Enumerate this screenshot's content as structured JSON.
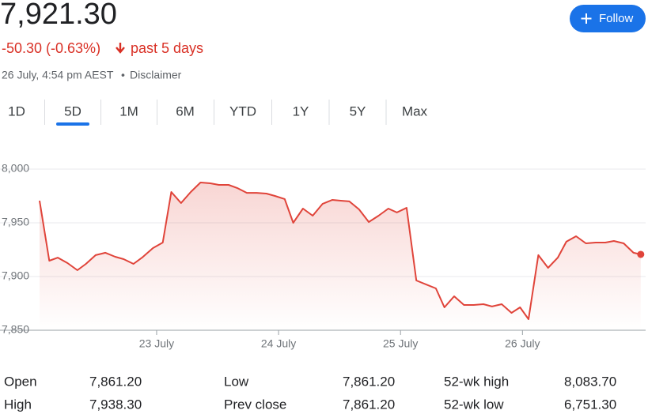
{
  "header": {
    "price": "7,921.30",
    "change": "-50.30 (-0.63%)",
    "period": "past 5 days",
    "timestamp": "26 July, 4:54 pm AEST",
    "disclaimer": "Disclaimer",
    "follow": "Follow"
  },
  "tabs": [
    "1D",
    "5D",
    "1M",
    "6M",
    "YTD",
    "1Y",
    "5Y",
    "Max"
  ],
  "active_tab": 1,
  "chart_data": {
    "type": "line",
    "series": [
      {
        "color": "#e0443a",
        "x": [
          22.04,
          22.12,
          22.19,
          22.27,
          22.35,
          22.42,
          22.5,
          22.58,
          22.66,
          22.73,
          22.81,
          22.88,
          22.97,
          23.05,
          23.12,
          23.2,
          23.28,
          23.36,
          23.44,
          23.51,
          23.59,
          23.66,
          23.74,
          23.82,
          23.9,
          23.97,
          24.05,
          24.12,
          24.2,
          24.28,
          24.36,
          24.44,
          24.51,
          24.58,
          24.66,
          24.74,
          24.82,
          24.9,
          24.97,
          25.05,
          25.13,
          25.21,
          25.29,
          25.36,
          25.44,
          25.52,
          25.6,
          25.68,
          25.75,
          25.83,
          25.91,
          25.98,
          26.05,
          26.13,
          26.21,
          26.29,
          26.36,
          26.44,
          26.52,
          26.6,
          26.68,
          26.75,
          26.83,
          26.91,
          26.97
        ],
        "values": [
          7970.6,
          7914.7,
          7917.6,
          7912.5,
          7905.9,
          7911.8,
          7919.9,
          7922.1,
          7918.4,
          7916.2,
          7911.8,
          7917.6,
          7926.5,
          7931.6,
          7978.7,
          7968.4,
          7978.7,
          7987.5,
          7986.8,
          7985.3,
          7985.3,
          7982.4,
          7977.9,
          7977.9,
          7977.2,
          7975,
          7972.1,
          7950,
          7963.2,
          7956.6,
          7967.6,
          7971.3,
          7970.6,
          7969.9,
          7962.5,
          7950.7,
          7956.6,
          7963.2,
          7959.6,
          7964,
          7896.3,
          7892.6,
          7889,
          7871.3,
          7881.6,
          7873.5,
          7873.5,
          7874.3,
          7872.1,
          7874.3,
          7866.2,
          7871.3,
          7860.3,
          7919.9,
          7908.1,
          7917.6,
          7932.4,
          7937.5,
          7930.9,
          7931.6,
          7931.6,
          7933.1,
          7930.9,
          7922.1,
          7920.6
        ]
      }
    ],
    "xlim": [
      22.04,
      27.01
    ],
    "xticks": [
      {
        "value": 23,
        "label": "23 July"
      },
      {
        "value": 24,
        "label": "24 July"
      },
      {
        "value": 25,
        "label": "25 July"
      },
      {
        "value": 26,
        "label": "26 July"
      }
    ],
    "ylim": [
      7850,
      8000
    ],
    "yticks": [
      {
        "value": 7850,
        "label": "7,850"
      },
      {
        "value": 7900,
        "label": "7,900"
      },
      {
        "value": 7950,
        "label": "7,950"
      },
      {
        "value": 8000,
        "label": "8,000"
      }
    ],
    "grid": true
  },
  "stats": [
    {
      "label": "Open",
      "value": "7,861.20"
    },
    {
      "label": "High",
      "value": "7,938.30"
    },
    {
      "label": "Low",
      "value": "7,861.20"
    },
    {
      "label": "Prev close",
      "value": "7,861.20"
    },
    {
      "label": "52-wk high",
      "value": "8,083.70"
    },
    {
      "label": "52-wk low",
      "value": "6,751.30"
    }
  ]
}
